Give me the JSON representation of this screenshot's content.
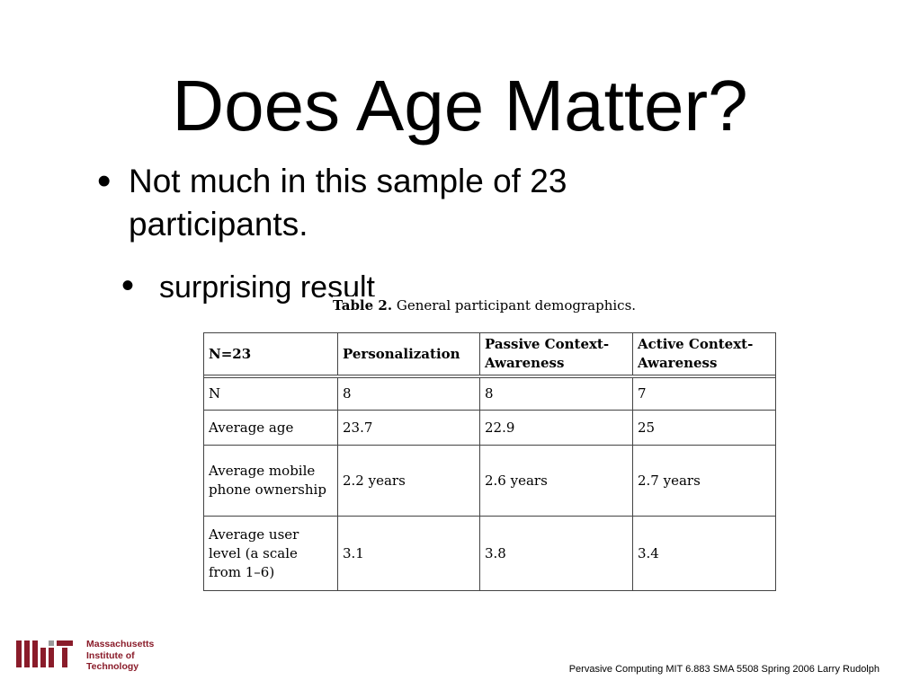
{
  "slide": {
    "title": "Does Age Matter?",
    "bullet1": "Not much in this sample of 23 participants.",
    "bullet2": "surprising result"
  },
  "table": {
    "caption_label": "Table 2.",
    "caption_text": "General participant demographics.",
    "headers": [
      "N=23",
      "Personalization",
      "Passive Context-Awareness",
      "Active Context-Awareness"
    ],
    "rows": [
      [
        "N",
        "8",
        "8",
        "7"
      ],
      [
        "Average age",
        "23.7",
        "22.9",
        "25"
      ],
      [
        "Average mobile phone ownership",
        "2.2 years",
        "2.6 years",
        "2.7 years"
      ],
      [
        "Average user level (a scale from 1–6)",
        "3.1",
        "3.8",
        "3.4"
      ]
    ]
  },
  "footer": {
    "text": "Pervasive Computing MIT 6.883 SMA 5508 Spring 2006 Larry Rudolph"
  },
  "logo": {
    "line1": "Massachusetts",
    "line2": "Institute of",
    "line3": "Technology",
    "color": "#8a1c2a",
    "gray": "#9a9a9a"
  }
}
